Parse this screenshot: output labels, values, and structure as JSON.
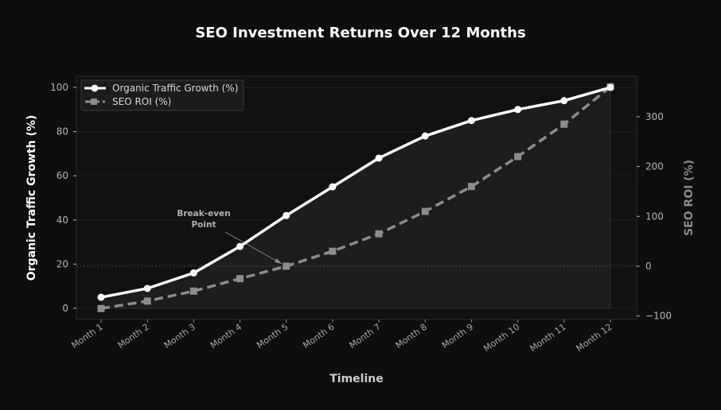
{
  "chart_data": {
    "type": "line",
    "title": "SEO Investment Returns Over 12 Months",
    "xlabel": "Timeline",
    "ylabel": "Organic Traffic Growth (%)",
    "ylabel_right": "SEO ROI (%)",
    "categories": [
      "Month 1",
      "Month 2",
      "Month 3",
      "Month 4",
      "Month 5",
      "Month 6",
      "Month 7",
      "Month 8",
      "Month 9",
      "Month 10",
      "Month 11",
      "Month 12"
    ],
    "series": [
      {
        "name": "Organic Traffic Growth (%)",
        "axis": "left",
        "color": "#ffffff",
        "marker": "circle",
        "linestyle": "solid",
        "values": [
          5,
          9,
          16,
          28,
          42,
          55,
          68,
          78,
          85,
          90,
          94,
          100
        ]
      },
      {
        "name": "SEO ROI (%)",
        "axis": "right",
        "color": "#8c8c8c",
        "marker": "square",
        "linestyle": "dashed",
        "values": [
          -85,
          -70,
          -50,
          -25,
          0,
          30,
          65,
          110,
          160,
          220,
          285,
          360
        ]
      }
    ],
    "ylim": [
      -5,
      105
    ],
    "ylim_right": [
      -100,
      380
    ],
    "yticks": [
      0,
      20,
      40,
      60,
      80,
      100
    ],
    "yticks_right": [
      -100,
      0,
      100,
      200,
      300
    ],
    "grid": true,
    "legend_position": "upper left",
    "annotations": [
      {
        "text": "Break-even\nPoint",
        "target": "Month 5",
        "target_value": 0,
        "axis": "right"
      }
    ],
    "reference_lines": [
      {
        "axis": "right",
        "value": 0,
        "style": "dotted"
      }
    ]
  },
  "title": "SEO Investment Returns Over 12 Months",
  "xlabel": "Timeline",
  "ylabel_left": "Organic Traffic Growth (%)",
  "ylabel_right": "SEO ROI (%)",
  "legend": {
    "items": [
      {
        "label": "Organic Traffic Growth (%)"
      },
      {
        "label": "SEO ROI (%)"
      }
    ]
  },
  "annotation": {
    "line1": "Break-even",
    "line2": "Point"
  },
  "colors": {
    "background": "#0e0e0e",
    "traffic": "#ffffff",
    "roi": "#8c8c8c",
    "fill": "#1f1f1f"
  }
}
